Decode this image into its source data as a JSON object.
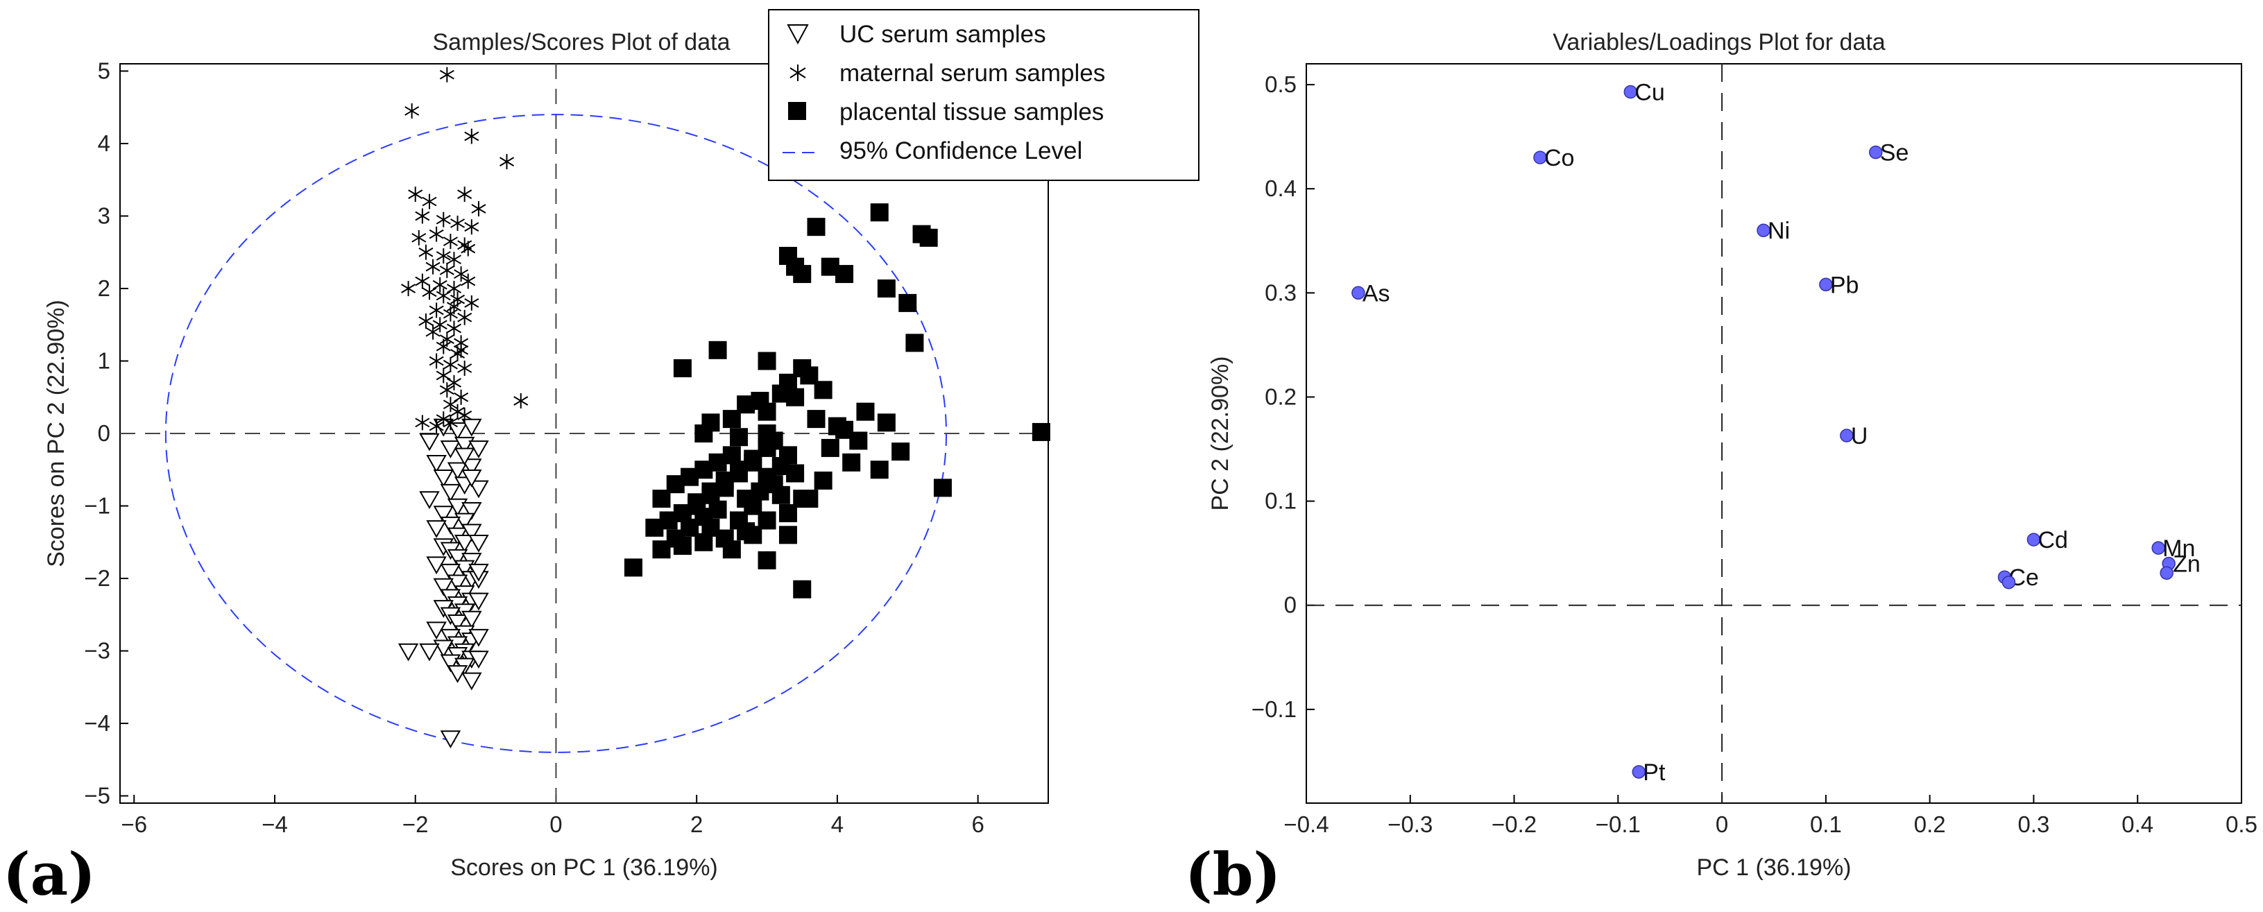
{
  "panels": [
    {
      "label": "(a)"
    },
    {
      "label": "(b)"
    }
  ],
  "chart_data": [
    {
      "type": "scatter",
      "title": "Samples/Scores Plot of data",
      "xlabel": "Scores on PC 1 (36.19%)",
      "ylabel": "Scores on PC 2 (22.90%)",
      "xlim": [
        -6.2,
        7
      ],
      "ylim": [
        -5.1,
        5.1
      ],
      "xticks": [
        -6,
        -4,
        -2,
        0,
        2,
        4,
        6
      ],
      "yticks": [
        -5,
        -4,
        -3,
        -2,
        -1,
        0,
        1,
        2,
        3,
        4,
        5
      ],
      "xtick_labels": [
        "−6",
        "−4",
        "−2",
        "0",
        "2",
        "4",
        "6"
      ],
      "ytick_labels": [
        "−5",
        "−4",
        "−3",
        "−2",
        "−1",
        "0",
        "1",
        "2",
        "3",
        "4",
        "5"
      ],
      "legend_position": "top-right",
      "legend": [
        "UC serum samples",
        "maternal serum samples",
        "placental tissue samples",
        "95% Confidence Level"
      ],
      "confidence_ellipse": {
        "cx": 0,
        "cy": 0,
        "rx": 5.55,
        "ry": 4.4,
        "color": "#2a3cff"
      },
      "series": [
        {
          "name": "UC serum samples",
          "marker": "triangle-down",
          "x": [
            -1.6,
            -1.4,
            -1.2,
            -1.8,
            -1.5,
            -1.3,
            -1.1,
            -1.7,
            -1.4,
            -1.2,
            -1.6,
            -1.3,
            -1.5,
            -1.1,
            -1.8,
            -1.4,
            -1.2,
            -1.6,
            -1.3,
            -1.5,
            -1.7,
            -1.4,
            -1.2,
            -1.3,
            -1.6,
            -1.1,
            -1.5,
            -1.4,
            -1.2,
            -1.7,
            -1.3,
            -1.5,
            -1.2,
            -1.4,
            -1.6,
            -1.1,
            -1.3,
            -1.5,
            -1.2,
            -1.4,
            -1.6,
            -1.3,
            -1.1,
            -1.5,
            -1.4,
            -1.2,
            -1.7,
            -1.3,
            -1.5,
            -1.2,
            -1.4,
            -1.1,
            -1.3,
            -1.6,
            -1.4,
            -1.2,
            -1.5,
            -1.3,
            -1.1,
            -1.4,
            -1.2,
            -2.1,
            -1.8,
            -1.5,
            -1.3,
            -1.2,
            -1.1
          ],
          "y": [
            0.1,
            0.05,
            0.1,
            -0.1,
            -0.2,
            -0.15,
            -0.2,
            -0.4,
            -0.5,
            -0.45,
            -0.6,
            -0.7,
            -0.8,
            -0.75,
            -0.9,
            -1.0,
            -1.05,
            -1.1,
            -1.2,
            -1.25,
            -1.3,
            -1.4,
            -1.35,
            -1.5,
            -1.55,
            -1.5,
            -1.6,
            -1.7,
            -1.75,
            -1.8,
            -1.85,
            -1.9,
            -2.0,
            -2.05,
            -2.1,
            -2.0,
            -2.2,
            -2.25,
            -2.3,
            -2.35,
            -2.4,
            -2.45,
            -2.3,
            -2.5,
            -2.6,
            -2.55,
            -2.7,
            -2.75,
            -2.8,
            -2.85,
            -2.9,
            -2.8,
            -3.0,
            -2.95,
            -3.05,
            -3.1,
            -3.15,
            -3.2,
            -3.1,
            -3.3,
            -3.4,
            -3.0,
            -3.0,
            -4.2,
            -0.3,
            -0.6,
            -1.9
          ]
        },
        {
          "name": "maternal serum samples",
          "marker": "star",
          "x": [
            -1.55,
            -2.05,
            -1.2,
            -0.7,
            -2.0,
            -1.8,
            -1.3,
            -1.1,
            -1.9,
            -1.6,
            -1.4,
            -1.2,
            -1.95,
            -1.7,
            -1.5,
            -1.3,
            -1.85,
            -1.6,
            -1.45,
            -1.25,
            -1.75,
            -1.55,
            -1.35,
            -1.9,
            -1.65,
            -1.45,
            -1.25,
            -1.8,
            -1.6,
            -1.4,
            -1.2,
            -1.7,
            -1.5,
            -1.3,
            -1.85,
            -1.65,
            -1.45,
            -1.75,
            -1.55,
            -1.35,
            -1.6,
            -1.4,
            -1.7,
            -1.5,
            -1.3,
            -1.6,
            -1.45,
            -1.55,
            -1.35,
            -1.5,
            -1.4,
            -0.5,
            -1.6,
            -1.9,
            -1.3,
            -1.7,
            -1.5,
            -2.1,
            -1.45,
            -1.35
          ],
          "y": [
            4.95,
            4.45,
            4.1,
            3.75,
            3.3,
            3.2,
            3.3,
            3.1,
            3.0,
            2.95,
            2.9,
            2.85,
            2.7,
            2.75,
            2.65,
            2.6,
            2.5,
            2.45,
            2.4,
            2.55,
            2.3,
            2.25,
            2.2,
            2.1,
            2.05,
            2.0,
            2.1,
            1.95,
            1.9,
            1.85,
            1.8,
            1.7,
            1.65,
            1.6,
            1.55,
            1.5,
            1.45,
            1.4,
            1.3,
            1.25,
            1.2,
            1.1,
            1.0,
            0.95,
            0.9,
            0.8,
            0.7,
            0.6,
            0.5,
            0.4,
            0.3,
            0.45,
            0.2,
            0.15,
            0.25,
            0.1,
            0.15,
            2.0,
            1.75,
            1.15
          ]
        },
        {
          "name": "placental tissue samples",
          "marker": "square",
          "x": [
            4.6,
            5.2,
            5.3,
            3.7,
            3.3,
            3.4,
            3.9,
            3.5,
            4.1,
            4.7,
            5.0,
            5.1,
            3.0,
            2.3,
            1.8,
            3.5,
            3.3,
            3.6,
            3.8,
            3.2,
            2.9,
            3.4,
            2.7,
            3.0,
            2.5,
            2.2,
            2.1,
            2.6,
            3.0,
            3.7,
            4.0,
            4.4,
            4.7,
            4.3,
            4.9,
            5.5,
            1.5,
            1.7,
            1.9,
            2.1,
            2.3,
            2.5,
            2.6,
            2.8,
            3.0,
            3.1,
            3.3,
            2.0,
            2.2,
            2.4,
            2.6,
            2.8,
            3.0,
            3.2,
            1.6,
            1.8,
            2.0,
            2.2,
            2.4,
            2.7,
            2.9,
            3.1,
            3.4,
            1.4,
            1.7,
            1.9,
            2.1,
            2.3,
            2.6,
            2.8,
            3.2,
            3.5,
            3.8,
            4.2,
            4.6,
            1.1,
            1.5,
            1.8,
            2.1,
            2.4,
            2.7,
            3.0,
            3.3,
            3.6,
            3.0,
            2.8,
            2.5,
            2.2,
            3.5,
            3.3,
            3.9,
            4.1,
            6.9
          ],
          "y": [
            3.05,
            2.75,
            2.7,
            2.85,
            2.45,
            2.3,
            2.3,
            2.2,
            2.2,
            2.0,
            1.8,
            1.25,
            1.0,
            1.15,
            0.9,
            0.9,
            0.7,
            0.8,
            0.6,
            0.55,
            0.45,
            0.5,
            0.4,
            0.3,
            0.2,
            0.15,
            0.0,
            -0.05,
            0.0,
            0.2,
            0.1,
            0.3,
            0.15,
            -0.1,
            -0.25,
            -0.75,
            -0.9,
            -0.7,
            -0.6,
            -0.5,
            -0.4,
            -0.3,
            -0.5,
            -0.35,
            -0.2,
            -0.1,
            -0.3,
            -1.0,
            -0.8,
            -0.65,
            -0.55,
            -0.4,
            -0.6,
            -0.45,
            -1.2,
            -1.1,
            -0.95,
            -0.85,
            -0.75,
            -0.9,
            -0.8,
            -0.7,
            -0.55,
            -1.3,
            -1.45,
            -1.3,
            -1.15,
            -1.05,
            -1.2,
            -1.0,
            -0.85,
            -0.9,
            -0.65,
            -0.4,
            -0.5,
            -1.85,
            -1.6,
            -1.55,
            -1.5,
            -1.45,
            -1.35,
            -1.2,
            -1.1,
            -0.9,
            -1.75,
            -1.4,
            -1.6,
            -1.3,
            -2.15,
            -1.4,
            -0.2,
            0.05,
            0.02
          ]
        }
      ]
    },
    {
      "type": "scatter",
      "title": "Variables/Loadings Plot for data",
      "xlabel": "PC 1 (36.19%)",
      "ylabel": "PC 2 (22.90%)",
      "xlim": [
        -0.4,
        0.5
      ],
      "ylim": [
        -0.19,
        0.52
      ],
      "xticks": [
        -0.4,
        -0.3,
        -0.2,
        -0.1,
        0,
        0.1,
        0.2,
        0.3,
        0.4,
        0.5
      ],
      "yticks": [
        -0.1,
        0,
        0.1,
        0.2,
        0.3,
        0.4,
        0.5
      ],
      "xtick_labels": [
        "−0.4",
        "−0.3",
        "−0.2",
        "−0.1",
        "0",
        "0.1",
        "0.2",
        "0.3",
        "0.4",
        "0.5"
      ],
      "ytick_labels": [
        "−0.1",
        "0",
        "0.1",
        "0.2",
        "0.3",
        "0.4",
        "0.5"
      ],
      "marker_color": "#6666ff",
      "points": [
        {
          "label": "Cu",
          "x": -0.088,
          "y": 0.493
        },
        {
          "label": "Co",
          "x": -0.175,
          "y": 0.43
        },
        {
          "label": "Se",
          "x": 0.148,
          "y": 0.435
        },
        {
          "label": "Ni",
          "x": 0.04,
          "y": 0.36
        },
        {
          "label": "As",
          "x": -0.35,
          "y": 0.3
        },
        {
          "label": "Pb",
          "x": 0.1,
          "y": 0.308
        },
        {
          "label": "U",
          "x": 0.12,
          "y": 0.163
        },
        {
          "label": "Cd",
          "x": 0.3,
          "y": 0.063
        },
        {
          "label": "Mn",
          "x": 0.42,
          "y": 0.055
        },
        {
          "label": "Zn",
          "x": 0.43,
          "y": 0.04
        },
        {
          "label": "",
          "x": 0.428,
          "y": 0.031
        },
        {
          "label": "Ce",
          "x": 0.272,
          "y": 0.027
        },
        {
          "label": "",
          "x": 0.276,
          "y": 0.022
        },
        {
          "label": "Pt",
          "x": -0.08,
          "y": -0.16
        }
      ]
    }
  ]
}
